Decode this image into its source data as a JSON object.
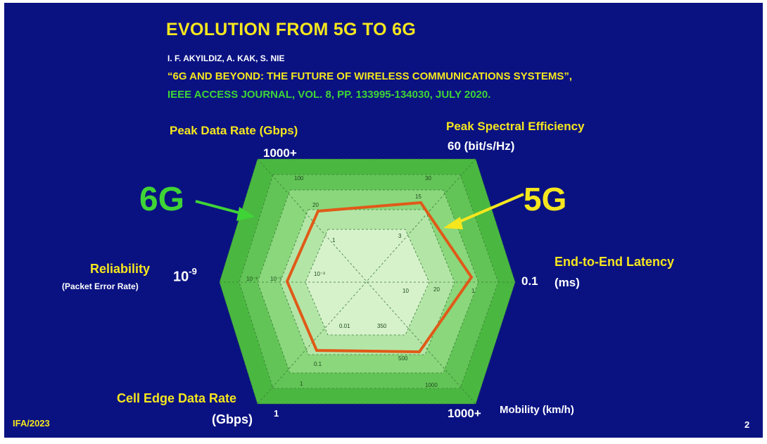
{
  "title": "EVOLUTION FROM 5G TO 6G",
  "authors": "I. F. AKYILDIZ, A. KAK, S. NIE",
  "paper_title": "“6G AND BEYOND: THE FUTURE OF  WIRELESS COMMUNICATIONS SYSTEMS”,",
  "journal": "IEEE ACCESS JOURNAL, VOL. 8, PP. 133995-134030, JULY 2020.",
  "axes": {
    "peak_data_rate": {
      "label": "Peak Data Rate (Gbps)",
      "value": "1000+"
    },
    "peak_spectral_efficiency": {
      "label": "Peak Spectral Efficiency",
      "value": "60 (bit/s/Hz)"
    },
    "reliability": {
      "label": "Reliability",
      "sublabel": "(Packet Error Rate)",
      "value_base": "10",
      "value_exp": "-9"
    },
    "latency": {
      "label": "End-to-End Latency",
      "value": "0.1",
      "unit": "(ms)"
    },
    "cell_edge": {
      "label": "Cell Edge Data Rate",
      "unit": "(Gbps)",
      "value": "1"
    },
    "mobility": {
      "label": "Mobility (km/h)",
      "value": "1000+"
    }
  },
  "legend": {
    "six_g": "6G",
    "five_g": "5G"
  },
  "colors": {
    "background": "#0a1282",
    "ring_outer": "#4ab840",
    "ring_2": "#62c456",
    "ring_3": "#8ad77c",
    "ring_4": "#b3e6a6",
    "ring_inner": "#d6f2cb",
    "five_g_line": "#e05a18",
    "six_g_arrow": "#3fd436",
    "five_g_arrow": "#f5e61e"
  },
  "footer": "IFA/2023",
  "page_number": "2"
}
